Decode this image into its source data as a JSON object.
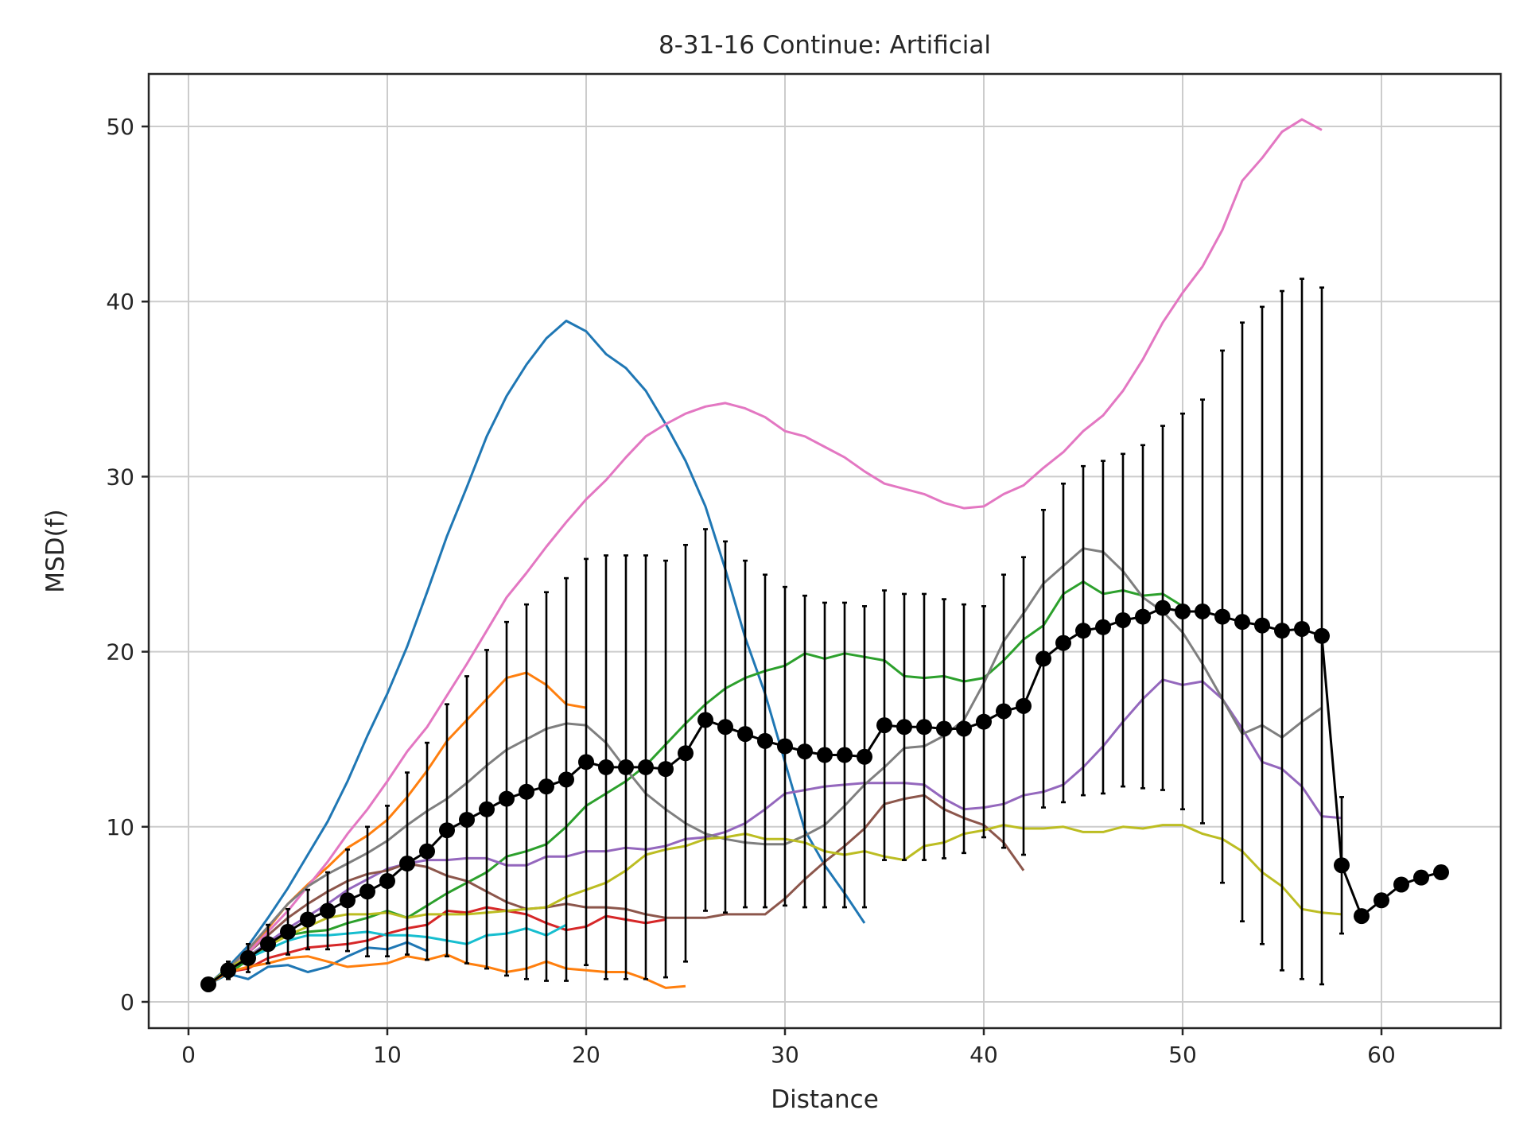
{
  "chart_data": {
    "type": "line",
    "title": "8-31-16 Continue: Artificial",
    "xlabel": "Distance",
    "ylabel": "MSD(f)",
    "xlim": [
      -2,
      66
    ],
    "ylim": [
      -1.5,
      53
    ],
    "xticks": [
      0,
      10,
      20,
      30,
      40,
      50,
      60
    ],
    "yticks": [
      0,
      10,
      20,
      30,
      40,
      50
    ],
    "grid": true,
    "series": [
      {
        "color": "#1f77b4",
        "x": [
          1,
          2,
          3,
          4,
          5,
          6,
          7,
          8,
          9,
          10,
          11,
          12,
          13,
          14,
          15,
          16,
          17,
          18,
          19,
          20,
          21,
          22,
          23,
          24,
          25,
          26,
          27,
          28,
          29,
          30,
          31,
          32,
          33,
          34
        ],
        "y": [
          1.0,
          2.0,
          3.2,
          4.8,
          6.5,
          8.4,
          10.3,
          12.6,
          15.2,
          17.6,
          20.3,
          23.4,
          26.6,
          29.4,
          32.3,
          34.6,
          36.4,
          37.9,
          38.9,
          38.3,
          37.0,
          36.2,
          34.9,
          33.0,
          30.9,
          28.3,
          24.7,
          20.8,
          17.6,
          13.7,
          9.8,
          7.8,
          6.2,
          4.5
        ]
      },
      {
        "color": "#ff7f0e",
        "x": [
          1,
          2,
          3,
          4,
          5,
          6,
          7,
          8,
          9,
          10,
          11,
          12,
          13,
          14,
          15,
          16,
          17,
          18,
          19,
          20
        ],
        "y": [
          1.0,
          1.9,
          2.8,
          4.2,
          5.6,
          6.7,
          7.7,
          8.8,
          9.5,
          10.4,
          11.7,
          13.2,
          14.9,
          16.1,
          17.3,
          18.5,
          18.8,
          18.1,
          17.0,
          16.8
        ]
      },
      {
        "color": "#2ca02c",
        "x": [
          1,
          2,
          3,
          4,
          5,
          6,
          7,
          8,
          9,
          10,
          11,
          12,
          13,
          14,
          15,
          16,
          17,
          18,
          19,
          20,
          21,
          22,
          23,
          24,
          25,
          26,
          27,
          28,
          29,
          30,
          31,
          32,
          33,
          34,
          35,
          36,
          37,
          38,
          39,
          40,
          41,
          42,
          43,
          44,
          45,
          46,
          47,
          48,
          49,
          50
        ],
        "y": [
          1.0,
          1.6,
          2.4,
          3.2,
          3.8,
          4.0,
          4.1,
          4.5,
          4.8,
          5.2,
          4.8,
          5.5,
          6.2,
          6.8,
          7.4,
          8.3,
          8.6,
          9.0,
          10.0,
          11.2,
          11.9,
          12.6,
          13.5,
          14.7,
          15.9,
          17.0,
          17.9,
          18.5,
          18.9,
          19.2,
          19.9,
          19.6,
          19.9,
          19.7,
          19.5,
          18.6,
          18.5,
          18.6,
          18.3,
          18.5,
          19.5,
          20.7,
          21.5,
          23.3,
          24.0,
          23.3,
          23.5,
          23.2,
          23.3,
          22.6
        ]
      },
      {
        "color": "#d62728",
        "x": [
          1,
          2,
          3,
          4,
          5,
          6,
          7,
          8,
          9,
          10,
          11,
          12,
          13,
          14,
          15,
          16,
          17,
          18,
          19,
          20,
          21,
          22,
          23,
          24
        ],
        "y": [
          1.0,
          1.7,
          1.9,
          2.5,
          2.8,
          3.1,
          3.2,
          3.3,
          3.5,
          3.9,
          4.2,
          4.4,
          5.2,
          5.1,
          5.4,
          5.2,
          5.0,
          4.5,
          4.1,
          4.3,
          4.9,
          4.7,
          4.5,
          4.7
        ]
      },
      {
        "color": "#9467bd",
        "x": [
          1,
          2,
          3,
          4,
          5,
          6,
          7,
          8,
          9,
          10,
          11,
          12,
          13,
          14,
          15,
          16,
          17,
          18,
          19,
          20,
          21,
          22,
          23,
          24,
          25,
          26,
          27,
          28,
          29,
          30,
          31,
          32,
          33,
          34,
          35,
          36,
          37,
          38,
          39,
          40,
          41,
          42,
          43,
          44,
          45,
          46,
          47,
          48,
          49,
          50,
          51,
          52,
          53,
          54,
          55,
          56,
          57,
          58
        ],
        "y": [
          1.0,
          1.8,
          2.6,
          3.4,
          4.2,
          4.9,
          5.6,
          6.4,
          7.0,
          7.6,
          7.9,
          8.1,
          8.1,
          8.2,
          8.2,
          7.8,
          7.8,
          8.3,
          8.3,
          8.6,
          8.6,
          8.8,
          8.7,
          8.9,
          9.3,
          9.4,
          9.7,
          10.2,
          11.0,
          11.9,
          12.1,
          12.3,
          12.4,
          12.5,
          12.5,
          12.5,
          12.4,
          11.6,
          11.0,
          11.1,
          11.3,
          11.8,
          12.0,
          12.4,
          13.4,
          14.6,
          16.0,
          17.3,
          18.4,
          18.1,
          18.3,
          17.3,
          15.6,
          13.7,
          13.3,
          12.3,
          10.6,
          10.5
        ]
      },
      {
        "color": "#8c564b",
        "x": [
          1,
          2,
          3,
          4,
          5,
          6,
          7,
          8,
          9,
          10,
          11,
          12,
          13,
          14,
          15,
          16,
          17,
          18,
          19,
          20,
          21,
          22,
          23,
          24,
          25,
          26,
          27,
          28,
          29,
          30,
          31,
          32,
          33,
          34,
          35,
          36,
          37,
          38,
          39,
          40,
          41,
          42
        ],
        "y": [
          1.0,
          1.9,
          2.8,
          3.8,
          4.8,
          5.6,
          6.3,
          6.9,
          7.3,
          7.5,
          7.9,
          7.7,
          7.2,
          6.9,
          6.3,
          5.7,
          5.3,
          5.4,
          5.6,
          5.4,
          5.4,
          5.3,
          5.0,
          4.8,
          4.8,
          4.8,
          5.0,
          5.0,
          5.0,
          5.9,
          7.0,
          8.0,
          8.9,
          9.9,
          11.3,
          11.6,
          11.8,
          11.0,
          10.5,
          10.1,
          9.1,
          7.5
        ]
      },
      {
        "color": "#e377c2",
        "x": [
          1,
          2,
          3,
          4,
          5,
          6,
          7,
          8,
          9,
          10,
          11,
          12,
          13,
          14,
          15,
          16,
          17,
          18,
          19,
          20,
          21,
          22,
          23,
          24,
          25,
          26,
          27,
          28,
          29,
          30,
          31,
          32,
          33,
          34,
          35,
          36,
          37,
          38,
          39,
          40,
          41,
          42,
          43,
          44,
          45,
          46,
          47,
          48,
          49,
          50,
          51,
          52,
          53,
          54,
          55,
          56,
          57
        ],
        "y": [
          1.0,
          1.8,
          2.8,
          4.0,
          5.2,
          6.6,
          8.0,
          9.6,
          11.0,
          12.6,
          14.3,
          15.7,
          17.5,
          19.3,
          21.2,
          23.1,
          24.5,
          26.0,
          27.4,
          28.7,
          29.8,
          31.1,
          32.3,
          33.0,
          33.6,
          34.0,
          34.2,
          33.9,
          33.4,
          32.6,
          32.3,
          31.7,
          31.1,
          30.3,
          29.6,
          29.3,
          29.0,
          28.5,
          28.2,
          28.3,
          29.0,
          29.5,
          30.5,
          31.4,
          32.6,
          33.5,
          34.9,
          36.7,
          38.8,
          40.5,
          42.0,
          44.1,
          46.9,
          48.2,
          49.7,
          50.4,
          49.8
        ]
      },
      {
        "color": "#7f7f7f",
        "x": [
          1,
          2,
          3,
          4,
          5,
          6,
          7,
          8,
          9,
          10,
          11,
          12,
          13,
          14,
          15,
          16,
          17,
          18,
          19,
          20,
          21,
          22,
          23,
          24,
          25,
          26,
          27,
          28,
          29,
          30,
          31,
          32,
          33,
          34,
          35,
          36,
          37,
          38,
          39,
          40,
          41,
          42,
          43,
          44,
          45,
          46,
          47,
          48,
          49,
          50,
          51,
          52,
          53,
          54,
          55,
          56,
          57
        ],
        "y": [
          1.0,
          1.9,
          3.0,
          4.3,
          5.6,
          6.6,
          7.3,
          7.9,
          8.5,
          9.2,
          10.1,
          10.9,
          11.6,
          12.5,
          13.5,
          14.4,
          15.0,
          15.6,
          15.9,
          15.8,
          14.8,
          13.3,
          11.9,
          11.0,
          10.2,
          9.6,
          9.3,
          9.1,
          9.0,
          9.0,
          9.5,
          10.1,
          11.2,
          12.4,
          13.4,
          14.5,
          14.6,
          15.2,
          16.1,
          18.2,
          20.6,
          22.2,
          23.9,
          24.9,
          25.9,
          25.7,
          24.6,
          23.1,
          22.3,
          21.1,
          19.3,
          17.3,
          15.3,
          15.8,
          15.1,
          16.0,
          16.8
        ]
      },
      {
        "color": "#bcbd22",
        "x": [
          1,
          2,
          3,
          4,
          5,
          6,
          7,
          8,
          9,
          10,
          11,
          12,
          13,
          14,
          15,
          16,
          17,
          18,
          19,
          20,
          21,
          22,
          23,
          24,
          25,
          26,
          27,
          28,
          29,
          30,
          31,
          32,
          33,
          34,
          35,
          36,
          37,
          38,
          39,
          40,
          41,
          42,
          43,
          44,
          45,
          46,
          47,
          48,
          49,
          50,
          51,
          52,
          53,
          54,
          55,
          56,
          57,
          58
        ],
        "y": [
          1.0,
          1.9,
          2.6,
          3.2,
          3.8,
          4.3,
          4.8,
          5.0,
          5.0,
          5.1,
          4.8,
          5.0,
          5.0,
          5.0,
          5.1,
          5.2,
          5.3,
          5.4,
          6.0,
          6.4,
          6.8,
          7.5,
          8.4,
          8.7,
          8.9,
          9.3,
          9.4,
          9.6,
          9.3,
          9.3,
          9.1,
          8.6,
          8.4,
          8.6,
          8.3,
          8.1,
          8.9,
          9.1,
          9.6,
          9.8,
          10.1,
          9.9,
          9.9,
          10.0,
          9.7,
          9.7,
          10.0,
          9.9,
          10.1,
          10.1,
          9.6,
          9.3,
          8.6,
          7.4,
          6.6,
          5.3,
          5.1,
          5.0
        ]
      },
      {
        "color": "#17becf",
        "x": [
          1,
          2,
          3,
          4,
          5,
          6,
          7,
          8,
          9,
          10,
          11,
          12,
          13,
          14,
          15,
          16,
          17,
          18,
          19
        ],
        "y": [
          1.0,
          1.8,
          2.5,
          3.0,
          3.5,
          3.8,
          3.8,
          3.9,
          4.0,
          3.8,
          3.8,
          3.7,
          3.5,
          3.3,
          3.8,
          3.9,
          4.2,
          3.8,
          4.4
        ]
      },
      {
        "color": "#1f77b4",
        "x": [
          1,
          2,
          3,
          4,
          5,
          6,
          7,
          8,
          9,
          10,
          11,
          12
        ],
        "y": [
          1.0,
          1.6,
          1.3,
          2.0,
          2.1,
          1.7,
          2.0,
          2.6,
          3.1,
          3.0,
          3.4,
          2.9
        ]
      },
      {
        "color": "#ff7f0e",
        "x": [
          1,
          2,
          3,
          4,
          5,
          6,
          7,
          8,
          9,
          10,
          11,
          12,
          13,
          14,
          15,
          16,
          17,
          18,
          19,
          20,
          21,
          22,
          23,
          24,
          25
        ],
        "y": [
          1.0,
          1.7,
          2.0,
          2.2,
          2.5,
          2.6,
          2.3,
          2.0,
          2.1,
          2.2,
          2.6,
          2.4,
          2.7,
          2.2,
          2.0,
          1.7,
          1.9,
          2.3,
          1.9,
          1.8,
          1.7,
          1.7,
          1.3,
          0.8,
          0.9
        ]
      }
    ],
    "mean_series": {
      "color": "#000000",
      "x": [
        1,
        2,
        3,
        4,
        5,
        6,
        7,
        8,
        9,
        10,
        11,
        12,
        13,
        14,
        15,
        16,
        17,
        18,
        19,
        20,
        21,
        22,
        23,
        24,
        25,
        26,
        27,
        28,
        29,
        30,
        31,
        32,
        33,
        34,
        35,
        36,
        37,
        38,
        39,
        40,
        41,
        42,
        43,
        44,
        45,
        46,
        47,
        48,
        49,
        50,
        51,
        52,
        53,
        54,
        55,
        56,
        57,
        58,
        59,
        60,
        61,
        62,
        63
      ],
      "y": [
        1.0,
        1.8,
        2.5,
        3.3,
        4.0,
        4.7,
        5.2,
        5.8,
        6.3,
        6.9,
        7.9,
        8.6,
        9.8,
        10.4,
        11.0,
        11.6,
        12.0,
        12.3,
        12.7,
        13.7,
        13.4,
        13.4,
        13.4,
        13.3,
        14.2,
        16.1,
        15.7,
        15.3,
        14.9,
        14.6,
        14.3,
        14.1,
        14.1,
        14.0,
        15.8,
        15.7,
        15.7,
        15.6,
        15.6,
        16.0,
        16.6,
        16.9,
        19.6,
        20.5,
        21.2,
        21.4,
        21.8,
        22.0,
        22.5,
        22.3,
        22.3,
        22.0,
        21.7,
        21.5,
        21.2,
        21.3,
        20.9,
        7.8,
        4.9,
        5.8,
        6.7,
        7.1,
        7.4
      ],
      "error": [
        0.2,
        0.5,
        0.8,
        1.1,
        1.3,
        1.7,
        2.2,
        2.9,
        3.7,
        4.3,
        5.2,
        6.2,
        7.2,
        8.2,
        9.1,
        10.1,
        10.7,
        11.1,
        11.5,
        11.6,
        12.1,
        12.1,
        12.1,
        11.9,
        11.9,
        10.9,
        10.6,
        9.9,
        9.5,
        9.1,
        8.9,
        8.7,
        8.7,
        8.6,
        7.7,
        7.6,
        7.6,
        7.4,
        7.1,
        6.6,
        7.8,
        8.5,
        8.5,
        9.1,
        9.4,
        9.5,
        9.5,
        9.8,
        10.4,
        11.3,
        12.1,
        15.2,
        17.1,
        18.2,
        19.4,
        20.0,
        19.9,
        3.9,
        0,
        0,
        0,
        0,
        0
      ]
    }
  }
}
